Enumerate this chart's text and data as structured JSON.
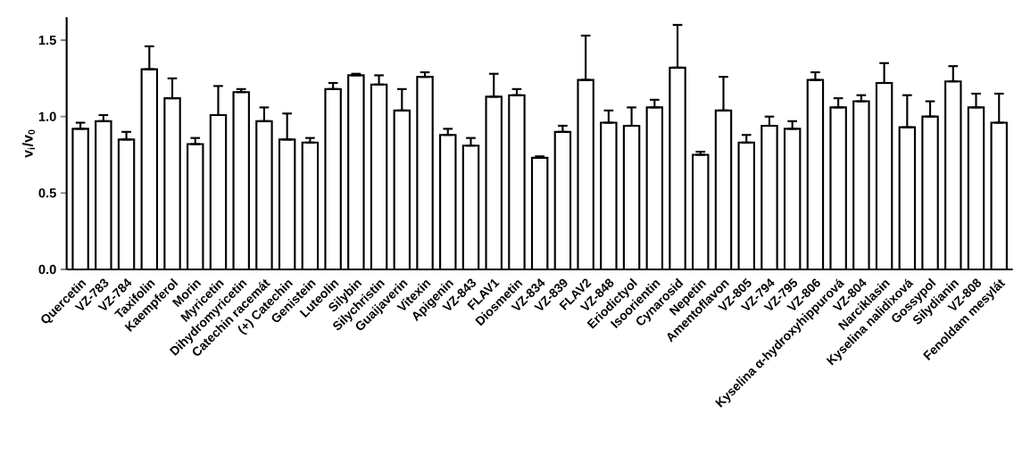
{
  "chart_data": {
    "type": "bar",
    "ylabel": "v$_{i}$/v$_{0}$",
    "categories": [
      "Quercetin",
      "VZ-783",
      "VZ-784",
      "Taxifolin",
      "Kaempferol",
      "Morin",
      "Myricetin",
      "Dihydromyricetin",
      "Catechin racemát",
      "(+) Catechin",
      "Genistein",
      "Luteolin",
      "Silybin",
      "Silychristin",
      "Guaijaverin",
      "Vitexin",
      "Apigenin",
      "VZ-843",
      "FLAV1",
      "Diosmetin",
      "VZ-834",
      "VZ-839",
      "FLAV2",
      "VZ-848",
      "Eriodictyol",
      "Isoorientin",
      "Cynarosid",
      "Nepetin",
      "Amentoflavon",
      "VZ-805",
      "VZ-794",
      "VZ-795",
      "VZ-806",
      "Kyselina α-hydroxyhippurová",
      "VZ-804",
      "Narciklasin",
      "Kyselina nalidixová",
      "Gossypol",
      "Silydianin",
      "VZ-808",
      "Fenoldam mesylát"
    ],
    "values": [
      0.92,
      0.97,
      0.85,
      1.31,
      1.12,
      0.82,
      1.01,
      1.16,
      0.97,
      0.85,
      0.83,
      1.18,
      1.27,
      1.21,
      1.04,
      1.26,
      0.88,
      0.81,
      1.13,
      1.14,
      0.73,
      0.9,
      1.24,
      0.96,
      0.94,
      1.06,
      1.32,
      0.75,
      1.04,
      0.83,
      0.94,
      0.92,
      1.24,
      1.06,
      1.1,
      1.22,
      0.93,
      1.0,
      1.23,
      1.06,
      0.96
    ],
    "errors": [
      [
        0.92,
        0.96
      ],
      [
        0.97,
        1.01
      ],
      [
        0.85,
        0.9
      ],
      [
        1.31,
        1.46
      ],
      [
        1.12,
        1.25
      ],
      [
        0.82,
        0.86
      ],
      [
        1.01,
        1.2
      ],
      [
        1.16,
        1.18
      ],
      [
        0.97,
        1.06
      ],
      [
        0.85,
        1.02
      ],
      [
        0.83,
        0.86
      ],
      [
        1.18,
        1.22
      ],
      [
        1.27,
        1.28
      ],
      [
        1.21,
        1.27
      ],
      [
        1.04,
        1.18
      ],
      [
        1.26,
        1.29
      ],
      [
        0.88,
        0.92
      ],
      [
        0.81,
        0.86
      ],
      [
        1.13,
        1.28
      ],
      [
        1.14,
        1.18
      ],
      [
        0.73,
        0.74
      ],
      [
        0.9,
        0.94
      ],
      [
        1.24,
        1.53
      ],
      [
        0.96,
        1.04
      ],
      [
        0.94,
        1.06
      ],
      [
        1.06,
        1.11
      ],
      [
        1.32,
        1.6
      ],
      [
        0.75,
        0.77
      ],
      [
        1.04,
        1.26
      ],
      [
        0.83,
        0.88
      ],
      [
        0.94,
        1.0
      ],
      [
        0.92,
        0.97
      ],
      [
        1.24,
        1.29
      ],
      [
        1.06,
        1.12
      ],
      [
        1.1,
        1.14
      ],
      [
        1.22,
        1.35
      ],
      [
        0.93,
        1.14
      ],
      [
        1.0,
        1.1
      ],
      [
        1.23,
        1.33
      ],
      [
        1.06,
        1.15
      ],
      [
        0.96,
        1.15
      ]
    ],
    "color": "#000000",
    "ylim": [
      0,
      1.65
    ],
    "yticks": [
      {
        "value": 0,
        "label": "0.0"
      },
      {
        "value": 0.5,
        "label": "0.5"
      },
      {
        "value": 1.0,
        "label": "1.0"
      },
      {
        "value": 1.5,
        "label": "1.5"
      }
    ]
  }
}
